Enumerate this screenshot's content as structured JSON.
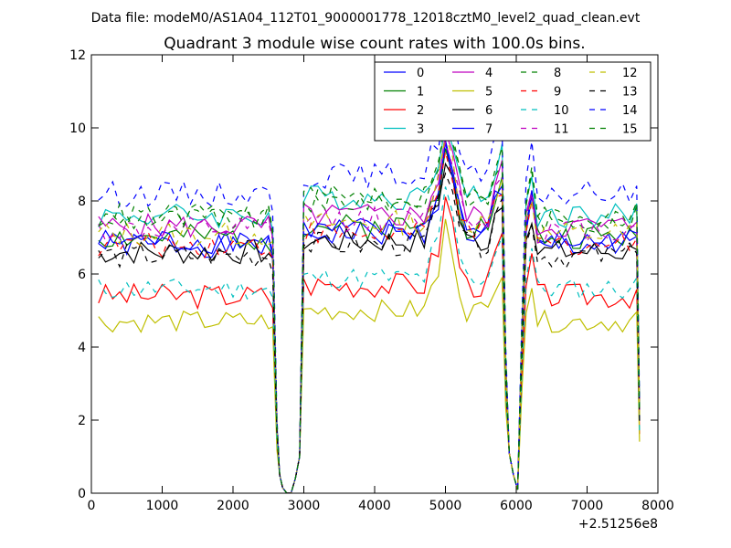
{
  "suptitle": "Data file: modeM0/AS1A04_112T01_9000001778_12018cztM0_level2_quad_clean.evt",
  "chart_data": {
    "type": "line",
    "title": "Quadrant 3 module wise count rates with 100.0s bins.",
    "xlabel": "",
    "ylabel": "",
    "xlim": [
      0,
      8000
    ],
    "ylim": [
      0,
      12
    ],
    "x_offset_label": "+2.51256e8",
    "xticks": [
      0,
      1000,
      2000,
      3000,
      4000,
      5000,
      6000,
      7000,
      8000
    ],
    "yticks": [
      0,
      2,
      4,
      6,
      8,
      10,
      12
    ],
    "legend_position": "upper-right",
    "legend_columns": 4,
    "grid": false,
    "series": [
      {
        "name": "0",
        "color": "#0000ff",
        "style": "solid",
        "base": 6.8,
        "amp": 0.35,
        "seed": 1
      },
      {
        "name": "1",
        "color": "#008000",
        "style": "solid",
        "base": 7.0,
        "amp": 0.35,
        "seed": 2
      },
      {
        "name": "2",
        "color": "#ff0000",
        "style": "solid",
        "base": 5.4,
        "amp": 0.35,
        "seed": 3
      },
      {
        "name": "3",
        "color": "#00bfbf",
        "style": "solid",
        "base": 7.6,
        "amp": 0.35,
        "seed": 4
      },
      {
        "name": "4",
        "color": "#bf00bf",
        "style": "solid",
        "base": 7.3,
        "amp": 0.35,
        "seed": 5
      },
      {
        "name": "5",
        "color": "#bfbf00",
        "style": "solid",
        "base": 4.7,
        "amp": 0.3,
        "seed": 6
      },
      {
        "name": "6",
        "color": "#000000",
        "style": "solid",
        "base": 6.6,
        "amp": 0.35,
        "seed": 7
      },
      {
        "name": "7",
        "color": "#0000ff",
        "style": "solid",
        "base": 6.9,
        "amp": 0.35,
        "seed": 8
      },
      {
        "name": "8",
        "color": "#008000",
        "style": "dashed",
        "base": 7.5,
        "amp": 0.35,
        "seed": 9
      },
      {
        "name": "9",
        "color": "#ff0000",
        "style": "dashed",
        "base": 6.8,
        "amp": 0.35,
        "seed": 10
      },
      {
        "name": "10",
        "color": "#00bfbf",
        "style": "dashed",
        "base": 5.6,
        "amp": 0.3,
        "seed": 11
      },
      {
        "name": "11",
        "color": "#bf00bf",
        "style": "dashed",
        "base": 7.2,
        "amp": 0.35,
        "seed": 12
      },
      {
        "name": "12",
        "color": "#bfbf00",
        "style": "dashed",
        "base": 7.1,
        "amp": 0.35,
        "seed": 13
      },
      {
        "name": "13",
        "color": "#000000",
        "style": "dashed",
        "base": 6.5,
        "amp": 0.35,
        "seed": 14
      },
      {
        "name": "14",
        "color": "#0000ff",
        "style": "dashed",
        "base": 8.2,
        "amp": 0.35,
        "seed": 15
      },
      {
        "name": "15",
        "color": "#008000",
        "style": "dashed",
        "base": 7.6,
        "amp": 0.35,
        "seed": 16
      }
    ]
  }
}
